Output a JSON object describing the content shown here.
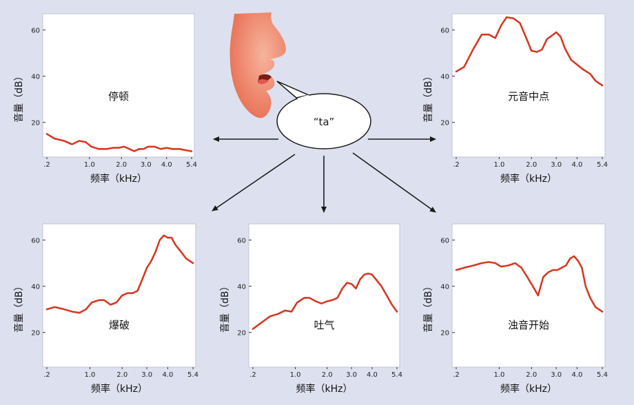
{
  "speech_bubble": {
    "text": "“ta”"
  },
  "axis_labels": {
    "y": "音量（dB）",
    "x": "频率（kHz）"
  },
  "colors": {
    "background": "#dde1ef",
    "curve": "#d43a22",
    "arrow": "#1a1a1a",
    "panel": "#ffffff",
    "face": "#f08a72"
  },
  "chart_data": [
    {
      "type": "line",
      "title": "停顿",
      "x_ticks": [
        ".2",
        "1.0",
        "2.0",
        "3.0",
        "4.0",
        "5.4"
      ],
      "x_tick_values": [
        0.2,
        1.0,
        2.0,
        3.0,
        4.0,
        5.4
      ],
      "y_ticks": [
        "20",
        "40",
        "60"
      ],
      "ylim": [
        5,
        67
      ],
      "xlabel": "频率（kHz）",
      "ylabel": "音量（dB）",
      "series": [
        {
          "x": [
            0.2,
            0.3,
            0.45,
            0.6,
            0.75,
            0.9,
            1.05,
            1.25,
            1.5,
            1.7,
            1.9,
            2.1,
            2.3,
            2.5,
            2.7,
            2.9,
            3.1,
            3.4,
            3.7,
            4.0,
            4.3,
            4.7,
            5.0,
            5.4
          ],
          "y": [
            15,
            13,
            12,
            10.5,
            12,
            11.5,
            9.5,
            8.5,
            8.5,
            9,
            9,
            9.5,
            8.5,
            7.5,
            8.5,
            8.5,
            9.5,
            9.5,
            8.5,
            9,
            8.5,
            8.5,
            8,
            7.5
          ]
        }
      ]
    },
    {
      "type": "line",
      "title": "元音中点",
      "x_ticks": [
        ".2",
        "1.0",
        "2.0",
        "3.0",
        "4.0",
        "5.4"
      ],
      "x_tick_values": [
        0.2,
        1.0,
        2.0,
        3.0,
        4.0,
        5.4
      ],
      "y_ticks": [
        "20",
        "40",
        "60"
      ],
      "ylim": [
        5,
        67
      ],
      "xlabel": "频率（kHz）",
      "ylabel": "音量（dB）",
      "series": [
        {
          "x": [
            0.2,
            0.3,
            0.45,
            0.6,
            0.75,
            0.9,
            1.05,
            1.2,
            1.4,
            1.6,
            1.8,
            2.0,
            2.2,
            2.4,
            2.6,
            2.8,
            3.0,
            3.2,
            3.4,
            3.7,
            4.0,
            4.3,
            4.7,
            5.0,
            5.4
          ],
          "y": [
            42,
            44,
            52,
            58,
            58,
            56.5,
            62,
            65.5,
            65,
            63,
            57,
            51,
            50.5,
            51.5,
            56,
            57.5,
            59,
            57,
            52,
            47,
            45,
            43,
            41,
            38,
            36
          ]
        }
      ]
    },
    {
      "type": "line",
      "title": "爆破",
      "x_ticks": [
        ".2",
        "1.0",
        "2.0",
        "3.0",
        "4.0",
        "5.4"
      ],
      "x_tick_values": [
        0.2,
        1.0,
        2.0,
        3.0,
        4.0,
        5.4
      ],
      "y_ticks": [
        "20",
        "40",
        "60"
      ],
      "ylim": [
        5,
        67
      ],
      "xlabel": "频率（kHz）",
      "ylabel": "音量（dB）",
      "series": [
        {
          "x": [
            0.2,
            0.3,
            0.45,
            0.6,
            0.75,
            0.9,
            1.05,
            1.25,
            1.4,
            1.6,
            1.8,
            2.0,
            2.2,
            2.4,
            2.6,
            2.8,
            3.0,
            3.2,
            3.4,
            3.6,
            3.8,
            4.0,
            4.2,
            4.4,
            4.7,
            5.0,
            5.4
          ],
          "y": [
            30,
            31,
            30,
            29,
            28.5,
            30,
            33,
            34,
            34,
            32,
            33,
            36,
            37,
            37,
            38,
            43,
            48,
            51,
            55,
            60,
            62,
            61,
            61,
            58,
            55,
            52,
            50
          ]
        }
      ]
    },
    {
      "type": "line",
      "title": "吐气",
      "x_ticks": [
        ".2",
        "1.0",
        "2.0",
        "3.0",
        "4.0",
        "5.4"
      ],
      "x_tick_values": [
        0.2,
        1.0,
        2.0,
        3.0,
        4.0,
        5.4
      ],
      "y_ticks": [
        "20",
        "40",
        "60"
      ],
      "ylim": [
        5,
        67
      ],
      "xlabel": "频率（kHz）",
      "ylabel": "音量（dB）",
      "series": [
        {
          "x": [
            0.2,
            0.3,
            0.45,
            0.6,
            0.75,
            0.9,
            1.05,
            1.25,
            1.4,
            1.6,
            1.8,
            2.0,
            2.2,
            2.4,
            2.6,
            2.8,
            3.0,
            3.2,
            3.4,
            3.6,
            3.8,
            4.0,
            4.2,
            4.5,
            4.8,
            5.1,
            5.4
          ],
          "y": [
            21.5,
            24,
            27,
            28,
            29.5,
            29,
            33,
            35,
            35,
            33.5,
            32.5,
            33.5,
            34,
            35,
            39,
            41.5,
            41,
            39,
            43,
            45,
            45.5,
            45,
            43,
            40,
            36,
            32,
            29
          ]
        }
      ]
    },
    {
      "type": "line",
      "title": "浊音开始",
      "x_ticks": [
        ".2",
        "1.0",
        "2.0",
        "3.0",
        "4.0",
        "5.4"
      ],
      "x_tick_values": [
        0.2,
        1.0,
        2.0,
        3.0,
        4.0,
        5.4
      ],
      "y_ticks": [
        "20",
        "40",
        "60"
      ],
      "ylim": [
        5,
        67
      ],
      "xlabel": "频率（kHz）",
      "ylabel": "音量（dB）",
      "series": [
        {
          "x": [
            0.2,
            0.3,
            0.45,
            0.6,
            0.75,
            0.9,
            1.05,
            1.25,
            1.45,
            1.65,
            1.85,
            2.05,
            2.25,
            2.45,
            2.65,
            2.85,
            3.05,
            3.25,
            3.45,
            3.65,
            3.85,
            4.05,
            4.25,
            4.45,
            4.7,
            5.0,
            5.4
          ],
          "y": [
            47,
            48,
            49,
            50,
            50.5,
            50,
            48.5,
            49,
            50,
            48,
            44,
            40,
            36,
            44,
            46,
            47,
            47,
            48,
            49,
            52,
            53,
            51,
            48,
            40,
            35,
            31,
            29
          ]
        }
      ]
    }
  ]
}
